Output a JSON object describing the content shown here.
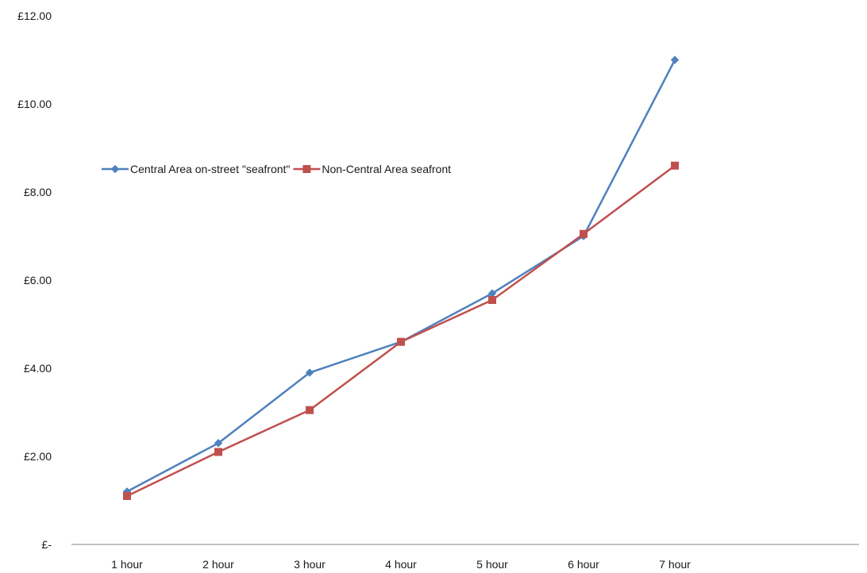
{
  "chart_data": {
    "type": "line",
    "title": "",
    "xlabel": "",
    "ylabel": "",
    "categories": [
      "1 hour",
      "2 hour",
      "3 hour",
      "4 hour",
      "5 hour",
      "6 hour",
      "7 hour"
    ],
    "y_ticks": [
      "£-",
      "£2.00",
      "£4.00",
      "£6.00",
      "£8.00",
      "£10.00",
      "£12.00"
    ],
    "ylim": [
      0,
      12
    ],
    "grid": false,
    "legend_position": "upper-left",
    "series": [
      {
        "name": "Central Area on-street \"seafront\"",
        "color": "#4f81bd",
        "marker": "diamond",
        "values": [
          1.2,
          2.3,
          3.9,
          4.6,
          5.7,
          7.0,
          11.0
        ]
      },
      {
        "name": "Non-Central Area seafront",
        "color": "#c0504d",
        "marker": "square",
        "values": [
          1.1,
          2.1,
          3.05,
          4.6,
          5.55,
          7.05,
          8.6
        ]
      }
    ]
  }
}
